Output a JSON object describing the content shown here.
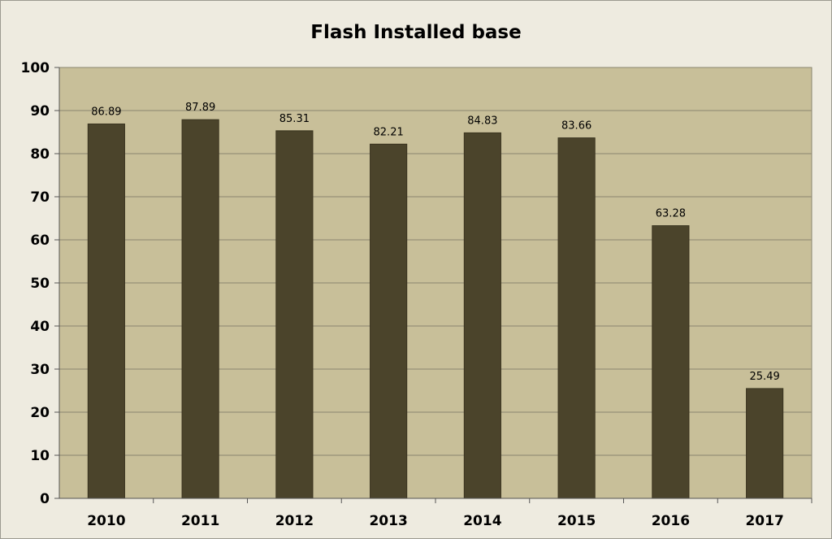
{
  "chart_data": {
    "type": "bar",
    "title": "Flash Installed base",
    "xlabel": "",
    "ylabel": "",
    "categories": [
      "2010",
      "2011",
      "2012",
      "2013",
      "2014",
      "2015",
      "2016",
      "2017"
    ],
    "values": [
      86.89,
      87.89,
      85.31,
      82.21,
      84.83,
      83.66,
      63.28,
      25.49
    ],
    "data_labels": [
      "86.89",
      "87.89",
      "85.31",
      "82.21",
      "84.83",
      "83.66",
      "63.28",
      "25.49"
    ],
    "ylim": [
      0,
      100
    ],
    "y_ticks": [
      0,
      10,
      20,
      30,
      40,
      50,
      60,
      70,
      80,
      90,
      100
    ],
    "grid": true,
    "legend": "none",
    "colors": {
      "bar": "#4b442b",
      "plot_background": "#c8bf99",
      "page_background": "#eeebe0",
      "gridline": "#8a8570"
    }
  }
}
